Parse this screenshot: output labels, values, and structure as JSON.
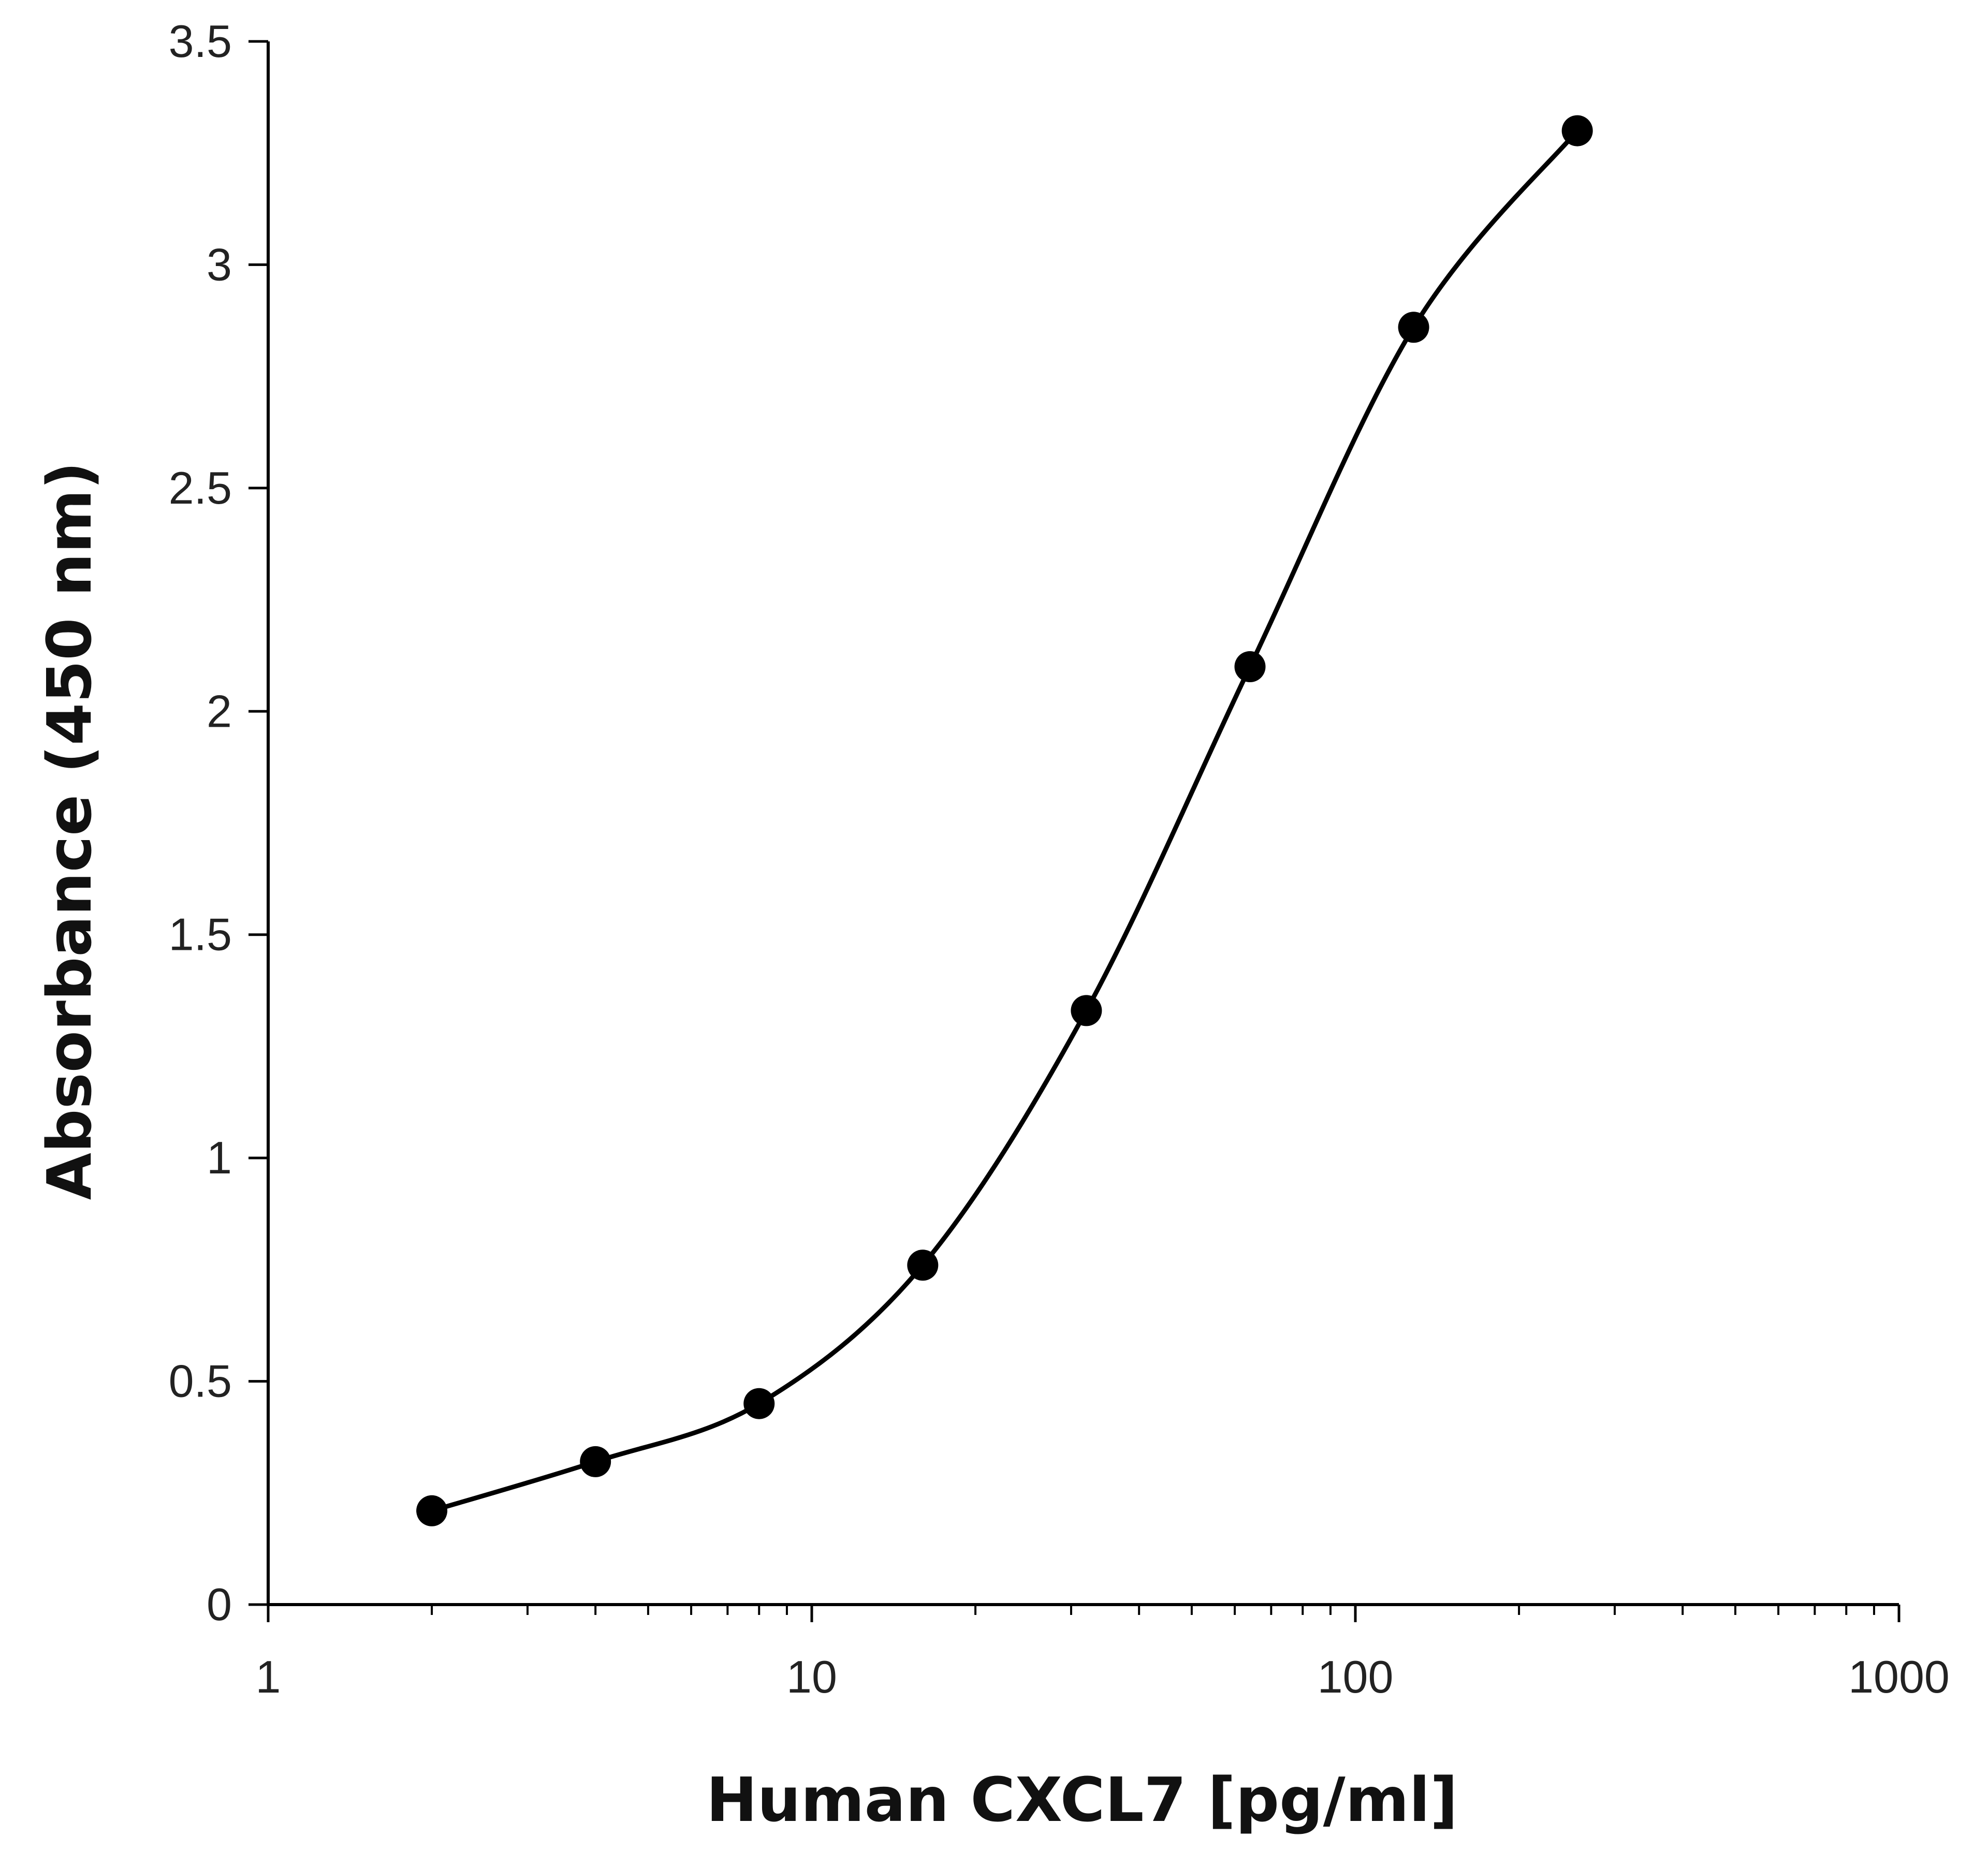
{
  "chart_data": {
    "type": "line",
    "title": "",
    "xlabel": "Human CXCL7 [pg/ml]",
    "ylabel": "Absorbance (450 nm)",
    "x_scale": "log",
    "xlim": [
      1,
      1000
    ],
    "ylim": [
      0,
      3.5
    ],
    "x_ticks": [
      1,
      10,
      100,
      1000
    ],
    "x_tick_labels": [
      "1",
      "10",
      "100",
      "1000"
    ],
    "y_ticks": [
      0,
      0.5,
      1,
      1.5,
      2,
      2.5,
      3,
      3.5
    ],
    "y_tick_labels": [
      "0",
      "0.5",
      "1",
      "1.5",
      "2",
      "2.5",
      "3",
      "3.5"
    ],
    "grid": false,
    "legend": "none",
    "series": [
      {
        "name": "Human CXCL7",
        "color": "#000000",
        "x": [
          2,
          4,
          8,
          16,
          32,
          64,
          128,
          256
        ],
        "y": [
          0.21,
          0.32,
          0.45,
          0.76,
          1.33,
          2.1,
          2.86,
          3.3
        ]
      }
    ]
  }
}
